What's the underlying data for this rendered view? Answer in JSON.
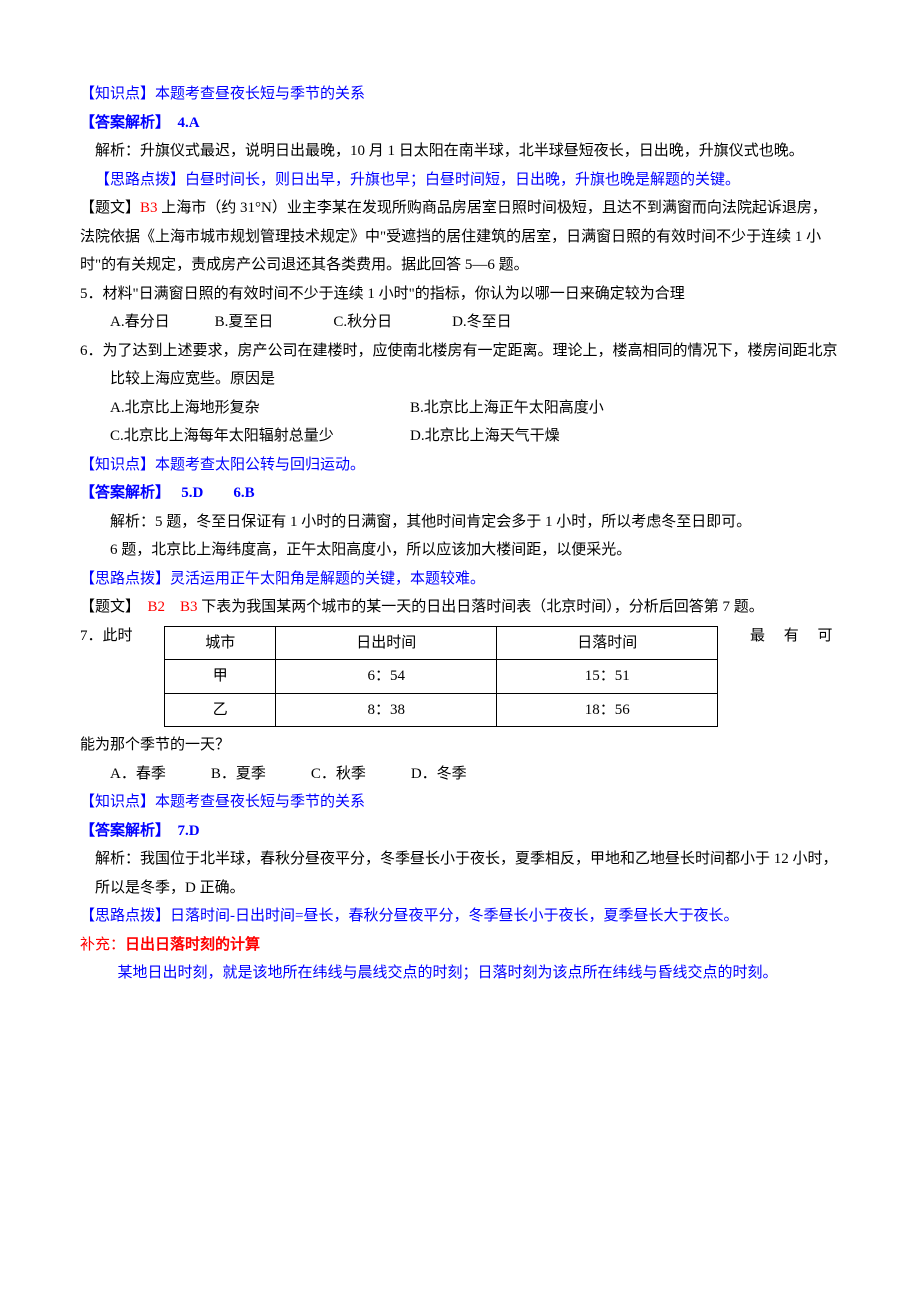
{
  "sec1": {
    "zsd": "【知识点】本题考查昼夜长短与季节的关系",
    "ans_label": "【答案解析】　4.A",
    "jiexi_label": "解析：",
    "jiexi": "升旗仪式最迟，说明日出最晚，10 月 1 日太阳在南半球，北半球昼短夜长，日出晚，升旗仪式也晚。",
    "sldb": "【思路点拨】白昼时间长，则日出早，升旗也早；白昼时间短，日出晚，升旗也晚是解题的关键。"
  },
  "sec2": {
    "tiwen_label": "【题文】",
    "tag": "B3 ",
    "stem": "上海市（约 31°N）业主李某在发现所购商品房居室日照时间极短，且达不到满窗而向法院起诉退房，法院依据《上海市城市规划管理技术规定》中\"受遮挡的居住建筑的居室，日满窗日照的有效时间不少于连续 1 小时\"的有关规定，责成房产公司退还其各类费用。据此回答 5—6 题。",
    "q5": "5．材料\"日满窗日照的有效时间不少于连续 1 小时\"的指标，你认为以哪一日来确定较为合理",
    "q5_opts": "A.春分日　　　B.夏至日　　　　C.秋分日　　　　D.冬至日",
    "q6": "6．为了达到上述要求，房产公司在建楼时，应使南北楼房有一定距离。理论上，楼高相同的情况下，楼房间距北京比较上海应宽些。原因是",
    "q6_optsA": "A.北京比上海地形复杂",
    "q6_optsB": "B.北京比上海正午太阳高度小",
    "q6_optsC": "C.北京比上海每年太阳辐射总量少",
    "q6_optsD": "D.北京比上海天气干燥",
    "zsd": "【知识点】本题考查太阳公转与回归运动。",
    "ans_label": "【答案解析】　 5.D　　6.B",
    "jiexi5": "解析：5 题，冬至日保证有 1 小时的日满窗，其他时间肯定会多于 1 小时，所以考虑冬至日即可。",
    "jiexi6": "6 题，北京比上海纬度高，正午太阳高度小，所以应该加大楼间距，以便采光。",
    "sldb": "【思路点拨】灵活运用正午太阳角是解题的关键，本题较难。"
  },
  "sec3": {
    "tiwen_label": "【题文】　",
    "tag": "B2　B3 ",
    "stem": "下表为我国某两个城市的某一天的日出日落时间表（北京时间），分析后回答第 7 题。",
    "table": {
      "columns": [
        "城市",
        "日出时间",
        "日落时间"
      ],
      "rows": [
        [
          "甲",
          "6：54",
          "15：51"
        ],
        [
          "乙",
          "8：38",
          "18：56"
        ]
      ],
      "col_widths": [
        "90px",
        "200px",
        "200px"
      ],
      "border_color": "#000000",
      "background_color": "#ffffff",
      "font_size": 15
    },
    "q7_left": "7．此时",
    "q7_right": "最 有 可",
    "q7_line2": "能为那个季节的一天？",
    "q7_opts": "A．春季　　　B．夏季　　　C．秋季　　　D．冬季",
    "zsd": "【知识点】本题考查昼夜长短与季节的关系",
    "ans_label": "【答案解析】　7.D",
    "jiexi": "解析：我国位于北半球，春秋分昼夜平分，冬季昼长小于夜长，夏季相反，甲地和乙地昼长时间都小于 12 小时，所以是冬季，D 正确。",
    "sldb": "【思路点拨】日落时间-日出时间=昼长，春秋分昼夜平分，冬季昼长小于夜长，夏季昼长大于夜长。",
    "supp_label": "补充：",
    "supp_title": "日出日落时刻的计算",
    "supp_body": "某地日出时刻，就是该地所在纬线与晨线交点的时刻；日落时刻为该点所在纬线与昏线交点的时刻。"
  }
}
